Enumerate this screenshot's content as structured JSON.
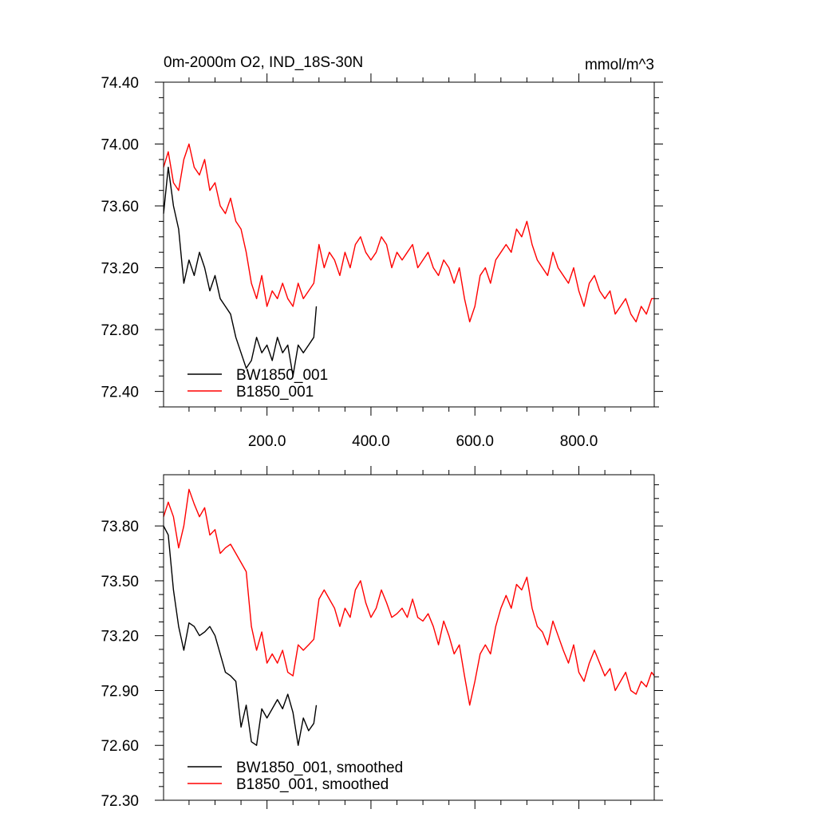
{
  "chart_data": [
    {
      "type": "line",
      "title": "0m-2000m O2, IND_18S-30N",
      "units": "mmol/m^3",
      "xlim": [
        1,
        945
      ],
      "ylim": [
        72.3,
        74.4
      ],
      "xticks": [
        200,
        400,
        600,
        800
      ],
      "xtick_labels": [
        "200.0",
        "400.0",
        "600.0",
        "800.0"
      ],
      "yticks": [
        72.4,
        72.8,
        73.2,
        73.6,
        74.0,
        74.4
      ],
      "ytick_labels": [
        "72.40",
        "72.80",
        "73.20",
        "73.60",
        "74.00",
        "74.40"
      ],
      "series": [
        {
          "name": "BW1850_001",
          "color": "#000000",
          "x": [
            1,
            10,
            20,
            30,
            40,
            50,
            60,
            70,
            80,
            90,
            100,
            110,
            120,
            130,
            140,
            150,
            160,
            170,
            180,
            190,
            200,
            210,
            220,
            230,
            240,
            250,
            260,
            270,
            280,
            290,
            295
          ],
          "y": [
            73.55,
            73.85,
            73.6,
            73.45,
            73.1,
            73.25,
            73.15,
            73.3,
            73.2,
            73.05,
            73.15,
            73.0,
            72.95,
            72.9,
            72.75,
            72.65,
            72.55,
            72.6,
            72.75,
            72.65,
            72.7,
            72.6,
            72.75,
            72.65,
            72.7,
            72.5,
            72.7,
            72.65,
            72.7,
            72.75,
            72.95
          ]
        },
        {
          "name": "B1850_001",
          "color": "#ff0000",
          "x": [
            1,
            10,
            20,
            30,
            40,
            50,
            60,
            70,
            80,
            90,
            100,
            110,
            120,
            130,
            140,
            150,
            160,
            170,
            180,
            190,
            200,
            210,
            220,
            230,
            240,
            250,
            260,
            270,
            280,
            290,
            300,
            310,
            320,
            330,
            340,
            350,
            360,
            370,
            380,
            390,
            400,
            410,
            420,
            430,
            440,
            450,
            460,
            470,
            480,
            490,
            500,
            510,
            520,
            530,
            540,
            550,
            560,
            570,
            580,
            590,
            600,
            610,
            620,
            630,
            640,
            650,
            660,
            670,
            680,
            690,
            700,
            710,
            720,
            730,
            740,
            750,
            760,
            770,
            780,
            790,
            800,
            810,
            820,
            830,
            840,
            850,
            860,
            870,
            880,
            890,
            900,
            910,
            920,
            930,
            940,
            945
          ],
          "y": [
            73.85,
            73.95,
            73.75,
            73.7,
            73.9,
            74.0,
            73.85,
            73.8,
            73.9,
            73.7,
            73.75,
            73.6,
            73.55,
            73.65,
            73.5,
            73.45,
            73.3,
            73.1,
            73.0,
            73.15,
            72.95,
            73.05,
            73.0,
            73.1,
            73.0,
            72.95,
            73.1,
            73.0,
            73.05,
            73.1,
            73.35,
            73.2,
            73.3,
            73.25,
            73.15,
            73.3,
            73.2,
            73.35,
            73.4,
            73.3,
            73.25,
            73.3,
            73.4,
            73.35,
            73.2,
            73.3,
            73.25,
            73.3,
            73.35,
            73.2,
            73.25,
            73.3,
            73.2,
            73.15,
            73.25,
            73.2,
            73.1,
            73.2,
            73.0,
            72.85,
            72.95,
            73.15,
            73.2,
            73.1,
            73.25,
            73.3,
            73.35,
            73.3,
            73.45,
            73.4,
            73.5,
            73.35,
            73.25,
            73.2,
            73.15,
            73.3,
            73.2,
            73.15,
            73.1,
            73.2,
            73.05,
            72.95,
            73.1,
            73.15,
            73.05,
            73.0,
            73.05,
            72.9,
            72.95,
            73.0,
            72.9,
            72.85,
            72.95,
            72.9,
            73.0,
            73.0
          ]
        }
      ]
    },
    {
      "type": "line",
      "xlim": [
        1,
        945
      ],
      "ylim": [
        72.3,
        74.08
      ],
      "yticks": [
        72.3,
        72.6,
        72.9,
        73.2,
        73.5,
        73.8
      ],
      "ytick_labels": [
        "72.30",
        "72.60",
        "72.90",
        "73.20",
        "73.50",
        "73.80"
      ],
      "series": [
        {
          "name": "BW1850_001, smoothed",
          "color": "#000000",
          "x": [
            1,
            10,
            20,
            30,
            40,
            50,
            60,
            70,
            80,
            90,
            100,
            110,
            120,
            130,
            140,
            150,
            160,
            170,
            180,
            190,
            200,
            210,
            220,
            230,
            240,
            250,
            260,
            270,
            280,
            290,
            295
          ],
          "y": [
            73.8,
            73.75,
            73.45,
            73.25,
            73.12,
            73.27,
            73.25,
            73.2,
            73.22,
            73.25,
            73.2,
            73.1,
            73.0,
            72.98,
            72.95,
            72.7,
            72.82,
            72.62,
            72.6,
            72.8,
            72.75,
            72.8,
            72.85,
            72.8,
            72.88,
            72.78,
            72.6,
            72.75,
            72.68,
            72.72,
            72.82
          ]
        },
        {
          "name": "B1850_001, smoothed",
          "color": "#ff0000",
          "x": [
            1,
            10,
            20,
            30,
            40,
            50,
            60,
            70,
            80,
            90,
            100,
            110,
            120,
            130,
            140,
            150,
            160,
            170,
            180,
            190,
            200,
            210,
            220,
            230,
            240,
            250,
            260,
            270,
            280,
            290,
            300,
            310,
            320,
            330,
            340,
            350,
            360,
            370,
            380,
            390,
            400,
            410,
            420,
            430,
            440,
            450,
            460,
            470,
            480,
            490,
            500,
            510,
            520,
            530,
            540,
            550,
            560,
            570,
            580,
            590,
            600,
            610,
            620,
            630,
            640,
            650,
            660,
            670,
            680,
            690,
            700,
            710,
            720,
            730,
            740,
            750,
            760,
            770,
            780,
            790,
            800,
            810,
            820,
            830,
            840,
            850,
            860,
            870,
            880,
            890,
            900,
            910,
            920,
            930,
            940,
            945
          ],
          "y": [
            73.85,
            73.93,
            73.85,
            73.68,
            73.8,
            74.0,
            73.92,
            73.85,
            73.9,
            73.75,
            73.78,
            73.65,
            73.68,
            73.7,
            73.65,
            73.6,
            73.55,
            73.25,
            73.12,
            73.22,
            73.05,
            73.1,
            73.05,
            73.12,
            73.0,
            72.98,
            73.15,
            73.12,
            73.15,
            73.18,
            73.4,
            73.45,
            73.4,
            73.35,
            73.25,
            73.35,
            73.3,
            73.45,
            73.5,
            73.38,
            73.3,
            73.35,
            73.45,
            73.38,
            73.3,
            73.32,
            73.35,
            73.3,
            73.4,
            73.3,
            73.28,
            73.32,
            73.25,
            73.15,
            73.28,
            73.2,
            73.1,
            73.15,
            72.98,
            72.82,
            72.95,
            73.1,
            73.15,
            73.1,
            73.25,
            73.35,
            73.42,
            73.35,
            73.48,
            73.45,
            73.52,
            73.35,
            73.25,
            73.22,
            73.15,
            73.28,
            73.2,
            73.12,
            73.05,
            73.15,
            73.0,
            72.95,
            73.05,
            73.12,
            73.05,
            72.98,
            73.02,
            72.9,
            72.95,
            73.0,
            72.9,
            72.88,
            72.95,
            72.92,
            73.0,
            72.98
          ]
        }
      ]
    }
  ]
}
